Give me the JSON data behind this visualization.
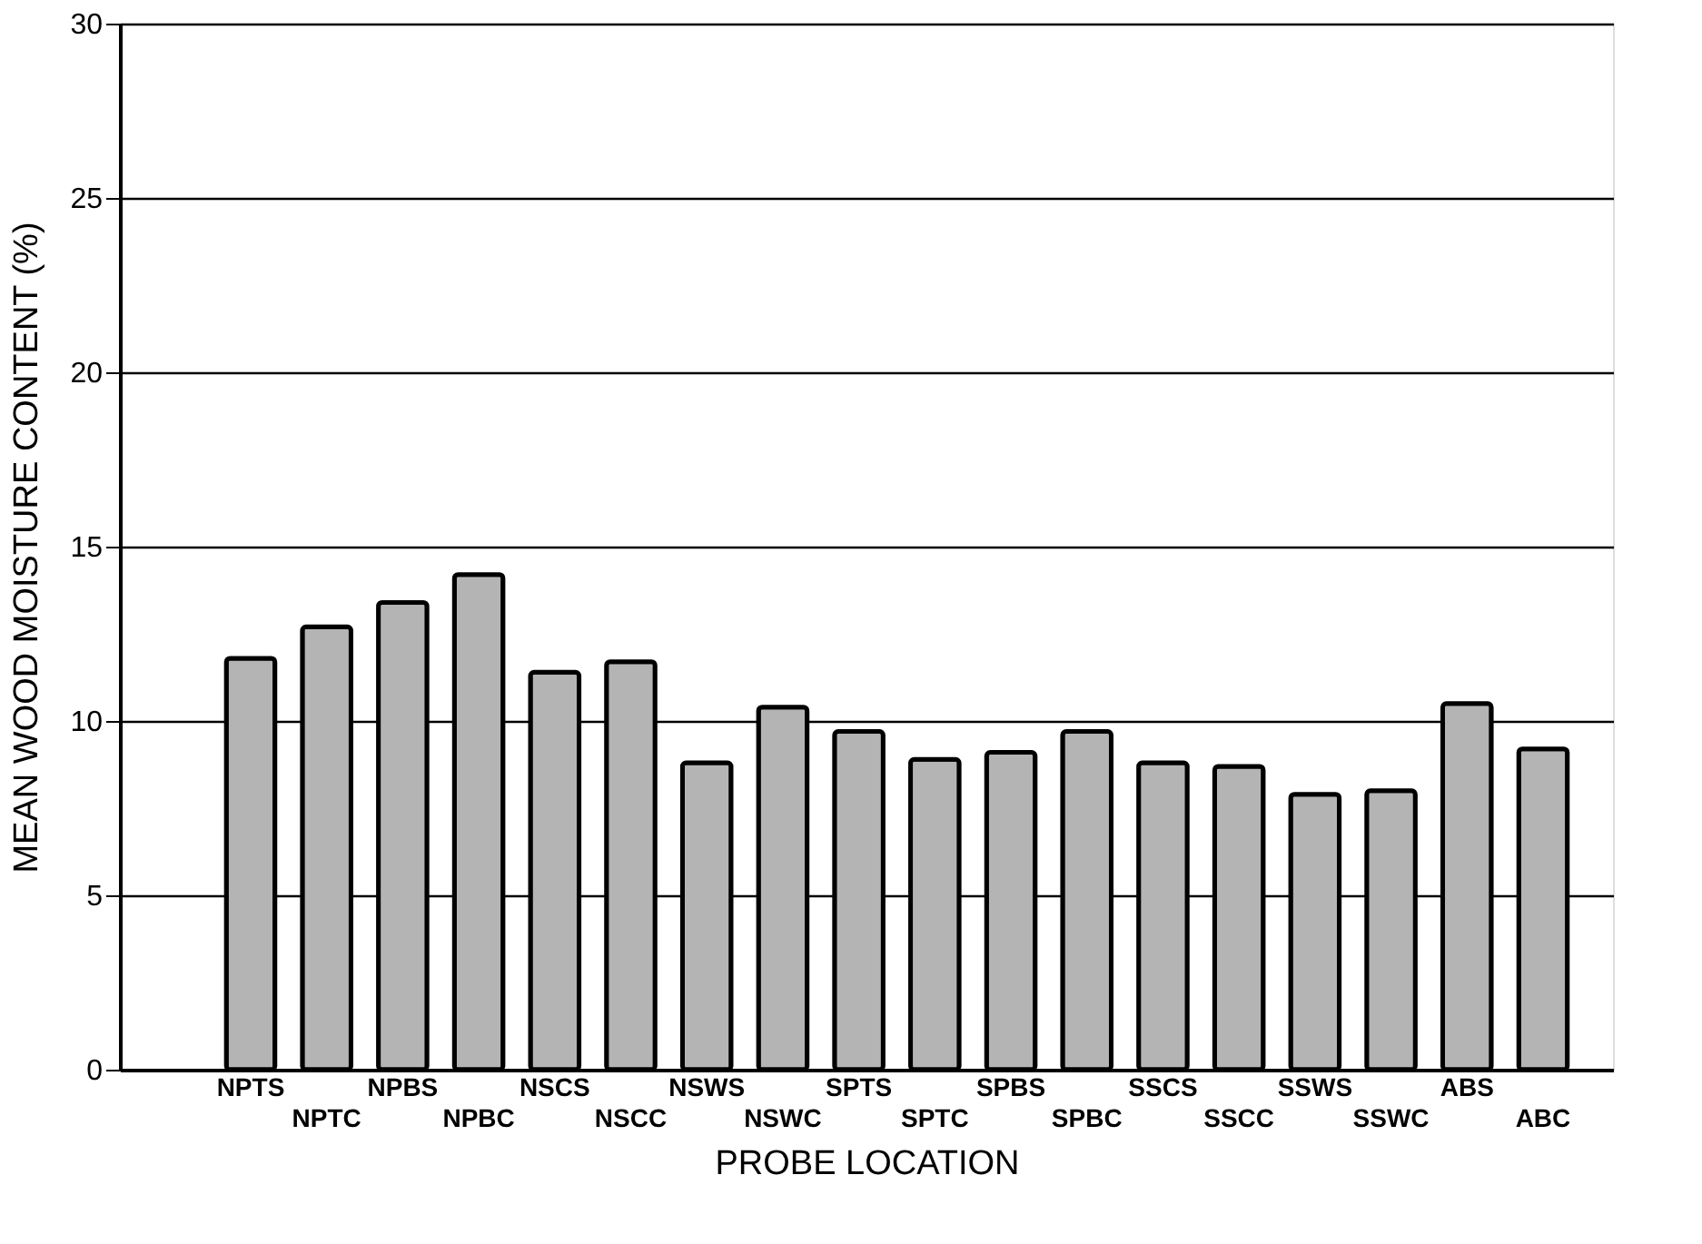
{
  "chart_data": {
    "type": "bar",
    "xlabel": "PROBE LOCATION",
    "ylabel": "MEAN WOOD MOISTURE CONTENT  (%)",
    "categories": [
      "NPTS",
      "NPTC",
      "NPBS",
      "NPBC",
      "NSCS",
      "NSCC",
      "NSWS",
      "NSWC",
      "SPTS",
      "SPTC",
      "SPBS",
      "SPBC",
      "SSCS",
      "SSCC",
      "SSWS",
      "SSWC",
      "ABS",
      "ABC"
    ],
    "values": [
      11.8,
      12.7,
      13.4,
      14.2,
      11.4,
      11.7,
      8.8,
      10.4,
      9.7,
      8.9,
      9.1,
      9.7,
      8.8,
      8.7,
      7.9,
      8.0,
      10.5,
      9.2
    ],
    "color": "#b4b4b4",
    "ylim": [
      0,
      30
    ],
    "yticks": [
      0,
      5,
      10,
      15,
      20,
      25,
      30
    ],
    "grid": "y"
  }
}
